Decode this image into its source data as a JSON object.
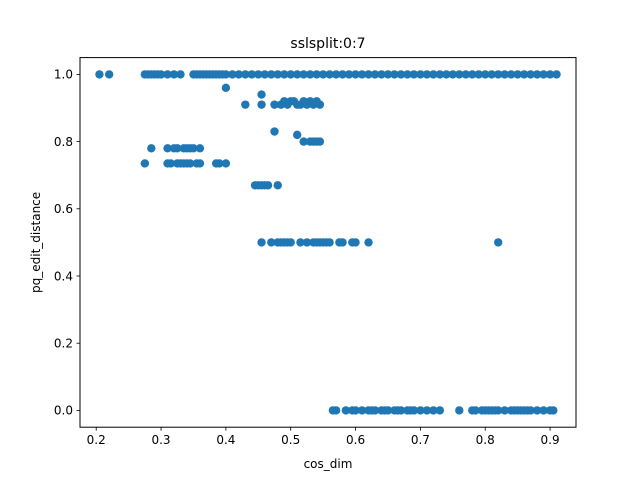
{
  "chart_data": {
    "type": "scatter",
    "title": "sslsplit:0:7",
    "xlabel": "cos_dim",
    "ylabel": "pq_edit_distance",
    "xlim": [
      0.175,
      0.94
    ],
    "ylim": [
      -0.05,
      1.05
    ],
    "xticks": [
      0.2,
      0.3,
      0.4,
      0.5,
      0.6,
      0.7,
      0.8,
      0.9
    ],
    "yticks": [
      0.0,
      0.2,
      0.4,
      0.6,
      0.8,
      1.0
    ],
    "xtick_labels": [
      "0.2",
      "0.3",
      "0.4",
      "0.5",
      "0.6",
      "0.7",
      "0.8",
      "0.9"
    ],
    "ytick_labels": [
      "0.0",
      "0.2",
      "0.4",
      "0.6",
      "0.8",
      "1.0"
    ],
    "grid": false,
    "marker_color": "#1f77b4",
    "series": [
      {
        "points": [
          [
            0.205,
            1.0
          ],
          [
            0.22,
            1.0
          ],
          [
            0.275,
            1.0
          ],
          [
            0.28,
            1.0
          ],
          [
            0.285,
            1.0
          ],
          [
            0.29,
            1.0
          ],
          [
            0.295,
            1.0
          ],
          [
            0.3,
            1.0
          ],
          [
            0.31,
            1.0
          ],
          [
            0.32,
            1.0
          ],
          [
            0.33,
            1.0
          ],
          [
            0.35,
            1.0
          ],
          [
            0.355,
            1.0
          ],
          [
            0.36,
            1.0
          ],
          [
            0.365,
            1.0
          ],
          [
            0.37,
            1.0
          ],
          [
            0.375,
            1.0
          ],
          [
            0.38,
            1.0
          ],
          [
            0.385,
            1.0
          ],
          [
            0.39,
            1.0
          ],
          [
            0.395,
            1.0
          ],
          [
            0.4,
            1.0
          ],
          [
            0.41,
            1.0
          ],
          [
            0.42,
            1.0
          ],
          [
            0.43,
            1.0
          ],
          [
            0.44,
            1.0
          ],
          [
            0.45,
            1.0
          ],
          [
            0.46,
            1.0
          ],
          [
            0.47,
            1.0
          ],
          [
            0.48,
            1.0
          ],
          [
            0.49,
            1.0
          ],
          [
            0.5,
            1.0
          ],
          [
            0.51,
            1.0
          ],
          [
            0.52,
            1.0
          ],
          [
            0.53,
            1.0
          ],
          [
            0.54,
            1.0
          ],
          [
            0.55,
            1.0
          ],
          [
            0.56,
            1.0
          ],
          [
            0.57,
            1.0
          ],
          [
            0.58,
            1.0
          ],
          [
            0.59,
            1.0
          ],
          [
            0.6,
            1.0
          ],
          [
            0.61,
            1.0
          ],
          [
            0.62,
            1.0
          ],
          [
            0.63,
            1.0
          ],
          [
            0.64,
            1.0
          ],
          [
            0.65,
            1.0
          ],
          [
            0.66,
            1.0
          ],
          [
            0.67,
            1.0
          ],
          [
            0.68,
            1.0
          ],
          [
            0.69,
            1.0
          ],
          [
            0.7,
            1.0
          ],
          [
            0.71,
            1.0
          ],
          [
            0.72,
            1.0
          ],
          [
            0.73,
            1.0
          ],
          [
            0.74,
            1.0
          ],
          [
            0.75,
            1.0
          ],
          [
            0.76,
            1.0
          ],
          [
            0.77,
            1.0
          ],
          [
            0.78,
            1.0
          ],
          [
            0.79,
            1.0
          ],
          [
            0.8,
            1.0
          ],
          [
            0.81,
            1.0
          ],
          [
            0.82,
            1.0
          ],
          [
            0.83,
            1.0
          ],
          [
            0.84,
            1.0
          ],
          [
            0.85,
            1.0
          ],
          [
            0.86,
            1.0
          ],
          [
            0.87,
            1.0
          ],
          [
            0.88,
            1.0
          ],
          [
            0.89,
            1.0
          ],
          [
            0.9,
            1.0
          ],
          [
            0.91,
            1.0
          ],
          [
            0.4,
            0.96
          ],
          [
            0.43,
            0.91
          ],
          [
            0.455,
            0.94
          ],
          [
            0.455,
            0.91
          ],
          [
            0.475,
            0.91
          ],
          [
            0.485,
            0.91
          ],
          [
            0.49,
            0.92
          ],
          [
            0.495,
            0.91
          ],
          [
            0.5,
            0.92
          ],
          [
            0.505,
            0.92
          ],
          [
            0.51,
            0.91
          ],
          [
            0.515,
            0.91
          ],
          [
            0.52,
            0.92
          ],
          [
            0.525,
            0.91
          ],
          [
            0.53,
            0.92
          ],
          [
            0.535,
            0.91
          ],
          [
            0.54,
            0.92
          ],
          [
            0.545,
            0.91
          ],
          [
            0.475,
            0.83
          ],
          [
            0.51,
            0.82
          ],
          [
            0.52,
            0.8
          ],
          [
            0.53,
            0.8
          ],
          [
            0.535,
            0.8
          ],
          [
            0.54,
            0.8
          ],
          [
            0.545,
            0.8
          ],
          [
            0.285,
            0.78
          ],
          [
            0.31,
            0.78
          ],
          [
            0.32,
            0.78
          ],
          [
            0.325,
            0.78
          ],
          [
            0.335,
            0.78
          ],
          [
            0.34,
            0.78
          ],
          [
            0.345,
            0.78
          ],
          [
            0.35,
            0.78
          ],
          [
            0.36,
            0.78
          ],
          [
            0.275,
            0.735
          ],
          [
            0.31,
            0.735
          ],
          [
            0.315,
            0.735
          ],
          [
            0.325,
            0.735
          ],
          [
            0.33,
            0.735
          ],
          [
            0.335,
            0.735
          ],
          [
            0.34,
            0.735
          ],
          [
            0.345,
            0.735
          ],
          [
            0.355,
            0.735
          ],
          [
            0.36,
            0.735
          ],
          [
            0.385,
            0.735
          ],
          [
            0.39,
            0.735
          ],
          [
            0.4,
            0.735
          ],
          [
            0.445,
            0.67
          ],
          [
            0.45,
            0.67
          ],
          [
            0.455,
            0.67
          ],
          [
            0.46,
            0.67
          ],
          [
            0.465,
            0.67
          ],
          [
            0.48,
            0.67
          ],
          [
            0.455,
            0.5
          ],
          [
            0.47,
            0.5
          ],
          [
            0.48,
            0.5
          ],
          [
            0.485,
            0.5
          ],
          [
            0.49,
            0.5
          ],
          [
            0.495,
            0.5
          ],
          [
            0.5,
            0.5
          ],
          [
            0.515,
            0.5
          ],
          [
            0.525,
            0.5
          ],
          [
            0.535,
            0.5
          ],
          [
            0.54,
            0.5
          ],
          [
            0.545,
            0.5
          ],
          [
            0.55,
            0.5
          ],
          [
            0.555,
            0.5
          ],
          [
            0.56,
            0.5
          ],
          [
            0.575,
            0.5
          ],
          [
            0.58,
            0.5
          ],
          [
            0.595,
            0.5
          ],
          [
            0.6,
            0.5
          ],
          [
            0.62,
            0.5
          ],
          [
            0.82,
            0.5
          ],
          [
            0.565,
            0.0
          ],
          [
            0.57,
            0.0
          ],
          [
            0.585,
            0.0
          ],
          [
            0.595,
            0.0
          ],
          [
            0.6,
            0.0
          ],
          [
            0.61,
            0.0
          ],
          [
            0.62,
            0.0
          ],
          [
            0.625,
            0.0
          ],
          [
            0.63,
            0.0
          ],
          [
            0.64,
            0.0
          ],
          [
            0.645,
            0.0
          ],
          [
            0.65,
            0.0
          ],
          [
            0.66,
            0.0
          ],
          [
            0.665,
            0.0
          ],
          [
            0.67,
            0.0
          ],
          [
            0.68,
            0.0
          ],
          [
            0.685,
            0.0
          ],
          [
            0.69,
            0.0
          ],
          [
            0.7,
            0.0
          ],
          [
            0.71,
            0.0
          ],
          [
            0.72,
            0.0
          ],
          [
            0.73,
            0.0
          ],
          [
            0.76,
            0.0
          ],
          [
            0.78,
            0.0
          ],
          [
            0.785,
            0.0
          ],
          [
            0.795,
            0.0
          ],
          [
            0.8,
            0.0
          ],
          [
            0.805,
            0.0
          ],
          [
            0.81,
            0.0
          ],
          [
            0.815,
            0.0
          ],
          [
            0.82,
            0.0
          ],
          [
            0.83,
            0.0
          ],
          [
            0.84,
            0.0
          ],
          [
            0.845,
            0.0
          ],
          [
            0.85,
            0.0
          ],
          [
            0.855,
            0.0
          ],
          [
            0.86,
            0.0
          ],
          [
            0.865,
            0.0
          ],
          [
            0.87,
            0.0
          ],
          [
            0.88,
            0.0
          ],
          [
            0.89,
            0.0
          ],
          [
            0.9,
            0.0
          ],
          [
            0.905,
            0.0
          ]
        ]
      }
    ]
  }
}
